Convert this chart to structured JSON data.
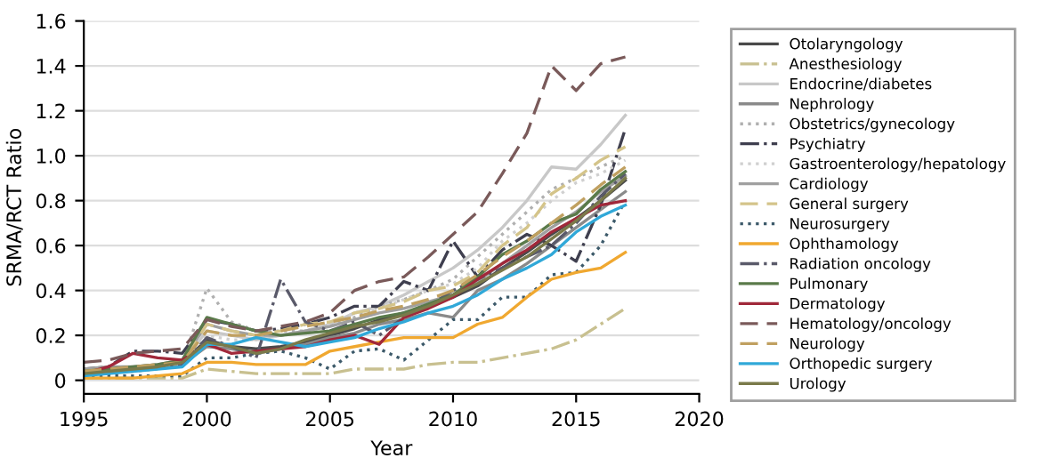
{
  "chart_data": {
    "type": "line",
    "xlabel": "Year",
    "ylabel": "SRMA/RCT Ratio",
    "x": [
      1995,
      1996,
      1997,
      1998,
      1999,
      2000,
      2001,
      2002,
      2003,
      2004,
      2005,
      2006,
      2007,
      2008,
      2009,
      2010,
      2011,
      2012,
      2013,
      2014,
      2015,
      2016,
      2017
    ],
    "xlim": [
      1995,
      2020
    ],
    "xticks": [
      1995,
      2000,
      2005,
      2010,
      2015,
      2020
    ],
    "ylim": [
      -0.06,
      1.6
    ],
    "yticks": [
      0,
      0.2,
      0.4,
      0.6,
      0.8,
      {
        "value": 1,
        "label": "1.0"
      },
      {
        "value": 1.2,
        "label": "1.2"
      },
      {
        "value": 1.4,
        "label": "1.4"
      },
      {
        "value": 1.6,
        "label": "1.6"
      }
    ],
    "grid": "y",
    "legend": "right",
    "series": [
      {
        "name": "Otolaryngology",
        "color": "#4a4a4a",
        "line_style": "solid",
        "values": [
          0.03,
          0.04,
          0.05,
          0.06,
          0.08,
          0.18,
          0.15,
          0.14,
          0.15,
          0.17,
          0.2,
          0.23,
          0.27,
          0.3,
          0.33,
          0.37,
          0.42,
          0.5,
          0.57,
          0.65,
          0.72,
          0.8,
          0.89
        ]
      },
      {
        "name": "Anesthesiology",
        "color": "#c8c090",
        "line_style": "dashdot",
        "values": [
          0.01,
          0.01,
          0.01,
          0.01,
          0.01,
          0.05,
          0.04,
          0.03,
          0.03,
          0.03,
          0.03,
          0.05,
          0.05,
          0.05,
          0.07,
          0.08,
          0.08,
          0.1,
          0.12,
          0.14,
          0.18,
          0.25,
          0.32
        ]
      },
      {
        "name": "Endocrine/diabetes",
        "color": "#c8c8c8",
        "line_style": "solid",
        "values": [
          0.04,
          0.05,
          0.05,
          0.06,
          0.08,
          0.22,
          0.2,
          0.18,
          0.2,
          0.22,
          0.25,
          0.3,
          0.33,
          0.38,
          0.44,
          0.5,
          0.58,
          0.68,
          0.8,
          0.95,
          0.94,
          1.05,
          1.18
        ]
      },
      {
        "name": "Nephrology",
        "color": "#8a8a8a",
        "line_style": "solid",
        "values": [
          0.04,
          0.05,
          0.05,
          0.06,
          0.07,
          0.15,
          0.14,
          0.12,
          0.14,
          0.16,
          0.19,
          0.21,
          0.25,
          0.27,
          0.3,
          0.28,
          0.4,
          0.45,
          0.52,
          0.6,
          0.68,
          0.76,
          0.84
        ]
      },
      {
        "name": "Obstetrics/gynecology",
        "color": "#b0b0b0",
        "line_style": "dotted",
        "values": [
          0.03,
          0.03,
          0.04,
          0.05,
          0.07,
          0.41,
          0.26,
          0.22,
          0.22,
          0.22,
          0.24,
          0.28,
          0.33,
          0.36,
          0.4,
          0.45,
          0.55,
          0.65,
          0.75,
          0.85,
          0.9,
          0.95,
          1.0
        ]
      },
      {
        "name": "Psychiatry",
        "color": "#3f3f4f",
        "line_style": "dashdot",
        "values": [
          0.05,
          0.06,
          0.13,
          0.13,
          0.12,
          0.27,
          0.25,
          0.22,
          0.23,
          0.25,
          0.28,
          0.33,
          0.33,
          0.44,
          0.4,
          0.62,
          0.46,
          0.58,
          0.65,
          0.6,
          0.53,
          0.78,
          1.12
        ]
      },
      {
        "name": "Gastroenterology/hepatology",
        "color": "#d0d0d0",
        "line_style": "dotted",
        "values": [
          0.03,
          0.04,
          0.04,
          0.05,
          0.07,
          0.2,
          0.18,
          0.18,
          0.2,
          0.22,
          0.25,
          0.3,
          0.32,
          0.36,
          0.4,
          0.43,
          0.5,
          0.62,
          0.7,
          0.8,
          0.88,
          0.92,
          0.98
        ]
      },
      {
        "name": "Cardiology",
        "color": "#a0a0a0",
        "line_style": "solid",
        "values": [
          0.05,
          0.06,
          0.06,
          0.07,
          0.09,
          0.25,
          0.22,
          0.2,
          0.2,
          0.22,
          0.24,
          0.27,
          0.3,
          0.32,
          0.35,
          0.38,
          0.44,
          0.52,
          0.6,
          0.68,
          0.75,
          0.84,
          0.91
        ]
      },
      {
        "name": "General surgery",
        "color": "#d4c48a",
        "line_style": "dashed",
        "values": [
          0.04,
          0.05,
          0.05,
          0.06,
          0.08,
          0.25,
          0.22,
          0.2,
          0.22,
          0.25,
          0.26,
          0.3,
          0.32,
          0.35,
          0.4,
          0.42,
          0.48,
          0.6,
          0.68,
          0.83,
          0.9,
          0.98,
          1.04
        ]
      },
      {
        "name": "Neurosurgery",
        "color": "#3d5a6a",
        "line_style": "dotted",
        "values": [
          0.02,
          0.02,
          0.02,
          0.02,
          0.02,
          0.1,
          0.1,
          0.12,
          0.13,
          0.1,
          0.05,
          0.13,
          0.14,
          0.09,
          0.18,
          0.27,
          0.27,
          0.37,
          0.37,
          0.47,
          0.48,
          0.6,
          0.8
        ]
      },
      {
        "name": "Ophthamology",
        "color": "#f0a830",
        "line_style": "solid",
        "values": [
          0.01,
          0.01,
          0.01,
          0.02,
          0.03,
          0.08,
          0.08,
          0.07,
          0.07,
          0.07,
          0.13,
          0.15,
          0.17,
          0.19,
          0.19,
          0.19,
          0.25,
          0.28,
          0.37,
          0.45,
          0.48,
          0.5,
          0.57
        ]
      },
      {
        "name": "Radiation oncology",
        "color": "#5a5a6a",
        "line_style": "dashdot",
        "values": [
          0.03,
          0.04,
          0.05,
          0.06,
          0.07,
          0.19,
          0.15,
          0.1,
          0.45,
          0.26,
          0.22,
          0.26,
          0.2,
          0.28,
          0.33,
          0.4,
          0.45,
          0.5,
          0.55,
          0.6,
          0.7,
          0.82,
          0.92
        ]
      },
      {
        "name": "Pulmonary",
        "color": "#5a7a4a",
        "line_style": "solid",
        "values": [
          0.04,
          0.05,
          0.06,
          0.07,
          0.09,
          0.28,
          0.25,
          0.22,
          0.2,
          0.21,
          0.22,
          0.25,
          0.28,
          0.3,
          0.34,
          0.38,
          0.46,
          0.56,
          0.62,
          0.7,
          0.74,
          0.85,
          0.93
        ]
      },
      {
        "name": "Dermatology",
        "color": "#a0283a",
        "line_style": "solid",
        "values": [
          0.03,
          0.06,
          0.12,
          0.1,
          0.09,
          0.16,
          0.12,
          0.13,
          0.14,
          0.15,
          0.18,
          0.2,
          0.16,
          0.28,
          0.32,
          0.37,
          0.45,
          0.52,
          0.58,
          0.66,
          0.72,
          0.78,
          0.8
        ]
      },
      {
        "name": "Hematology/oncology",
        "color": "#7a5a5a",
        "line_style": "dashed",
        "values": [
          0.08,
          0.09,
          0.12,
          0.13,
          0.14,
          0.27,
          0.24,
          0.22,
          0.24,
          0.26,
          0.3,
          0.4,
          0.44,
          0.46,
          0.55,
          0.65,
          0.75,
          0.92,
          1.1,
          1.4,
          1.29,
          1.41,
          1.44
        ]
      },
      {
        "name": "Neurology",
        "color": "#c0a060",
        "line_style": "dashed",
        "values": [
          0.04,
          0.05,
          0.06,
          0.07,
          0.08,
          0.22,
          0.2,
          0.2,
          0.22,
          0.24,
          0.26,
          0.28,
          0.31,
          0.33,
          0.36,
          0.4,
          0.47,
          0.55,
          0.62,
          0.7,
          0.78,
          0.87,
          0.95
        ]
      },
      {
        "name": "Orthopedic surgery",
        "color": "#30a8d8",
        "line_style": "solid",
        "values": [
          0.02,
          0.03,
          0.04,
          0.05,
          0.06,
          0.16,
          0.16,
          0.19,
          0.17,
          0.15,
          0.17,
          0.19,
          0.23,
          0.26,
          0.3,
          0.33,
          0.38,
          0.45,
          0.5,
          0.56,
          0.66,
          0.73,
          0.78
        ]
      },
      {
        "name": "Urology",
        "color": "#7a7a4a",
        "line_style": "solid",
        "values": [
          0.03,
          0.04,
          0.05,
          0.06,
          0.08,
          0.17,
          0.15,
          0.12,
          0.14,
          0.18,
          0.21,
          0.24,
          0.26,
          0.29,
          0.33,
          0.38,
          0.43,
          0.49,
          0.55,
          0.63,
          0.71,
          0.8,
          0.9
        ]
      }
    ]
  }
}
